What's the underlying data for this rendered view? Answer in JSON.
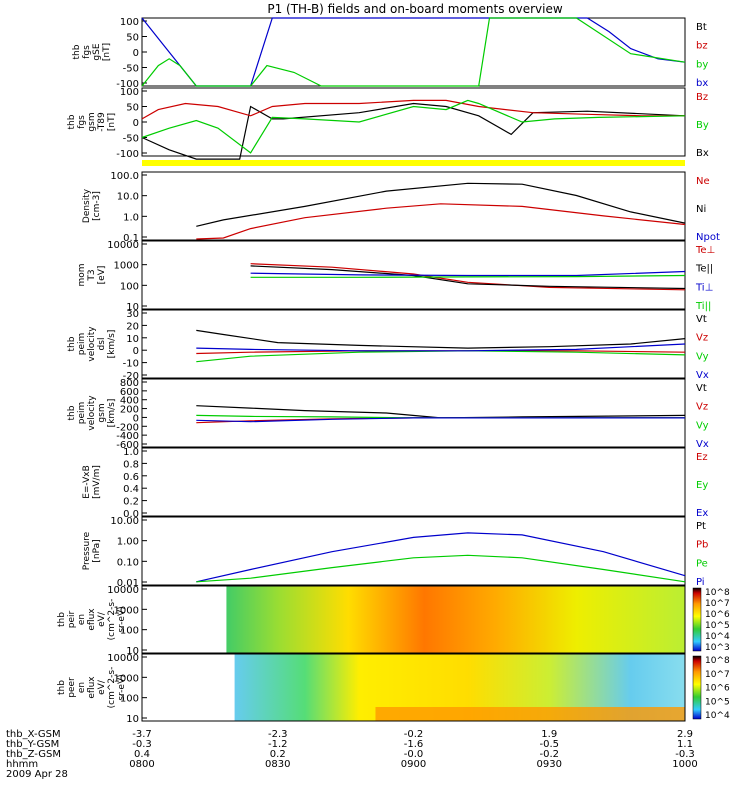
{
  "chart_data": [
    {
      "type": "line",
      "panel": "fgs",
      "ylabel": [
        "thb",
        "fgs",
        "gSE",
        "[nT]"
      ],
      "yticks": [
        "100",
        "50",
        "0",
        "-50",
        "-100"
      ],
      "ylim": [
        -100,
        100
      ],
      "legend": [
        {
          "text": "Bt",
          "color": "#000000"
        },
        {
          "text": "bz",
          "color": "#cc0000"
        },
        {
          "text": "by",
          "color": "#00cc00"
        },
        {
          "text": "bx",
          "color": "#0000cc"
        }
      ],
      "series": [
        {
          "name": "bx",
          "color": "#0000cc",
          "x": [
            0.0,
            0.04,
            0.08,
            0.1,
            0.2,
            0.24,
            0.4,
            0.6,
            0.82,
            0.86,
            0.9,
            0.95,
            1.0
          ],
          "y": [
            100,
            20,
            -60,
            -100,
            -100,
            100,
            100,
            100,
            100,
            60,
            10,
            -20,
            -30
          ]
        },
        {
          "name": "by",
          "color": "#00cc00",
          "x": [
            0.0,
            0.01,
            0.03,
            0.05,
            0.07,
            0.09,
            0.1,
            0.2,
            0.23,
            0.28,
            0.33,
            0.56,
            0.62,
            0.64,
            0.7,
            0.8,
            0.9,
            1.0
          ],
          "y": [
            -100,
            -80,
            -40,
            -20,
            -40,
            -80,
            -100,
            -100,
            -40,
            -60,
            -100,
            -100,
            -100,
            100,
            100,
            100,
            -5,
            -30
          ]
        }
      ]
    },
    {
      "type": "line",
      "panel": "fgs2",
      "ylabel": [
        "thb",
        "fgs",
        "gsm",
        "-T89",
        "[nT]"
      ],
      "yticks": [
        "100",
        "50",
        "0",
        "-50",
        "-100"
      ],
      "ylim": [
        -120,
        100
      ],
      "legend": [
        {
          "text": "Bz",
          "color": "#cc0000"
        },
        {
          "text": "By",
          "color": "#00cc00"
        },
        {
          "text": "Bx",
          "color": "#000000"
        }
      ],
      "series": [
        {
          "name": "Bx",
          "color": "#000000",
          "x": [
            0.0,
            0.05,
            0.1,
            0.18,
            0.2,
            0.24,
            0.26,
            0.4,
            0.5,
            0.56,
            0.62,
            0.68,
            0.72,
            0.82,
            1.0
          ],
          "y": [
            -60,
            -100,
            -130,
            -130,
            40,
            0,
            0,
            20,
            50,
            40,
            10,
            -50,
            20,
            25,
            10
          ]
        },
        {
          "name": "Bz",
          "color": "#cc0000",
          "x": [
            0.0,
            0.03,
            0.08,
            0.14,
            0.2,
            0.24,
            0.3,
            0.4,
            0.5,
            0.56,
            0.62,
            0.72,
            0.82,
            0.92,
            1.0
          ],
          "y": [
            0,
            30,
            50,
            40,
            10,
            40,
            50,
            50,
            60,
            60,
            40,
            20,
            15,
            10,
            10
          ]
        },
        {
          "name": "By",
          "color": "#00cc00",
          "x": [
            0.0,
            0.05,
            0.1,
            0.14,
            0.2,
            0.24,
            0.3,
            0.4,
            0.5,
            0.56,
            0.6,
            0.62,
            0.7,
            0.76,
            0.84,
            1.0
          ],
          "y": [
            -60,
            -30,
            -5,
            -30,
            -110,
            5,
            0,
            -10,
            40,
            30,
            60,
            50,
            -10,
            0,
            5,
            10
          ]
        }
      ]
    },
    {
      "type": "line",
      "panel": "density",
      "ylabel": [
        "Density",
        "[cm-3]"
      ],
      "yticks": [
        "100.0",
        "10.0",
        "1.0",
        "0.1"
      ],
      "ylog": [
        0.07,
        400
      ],
      "legend": [
        {
          "text": "Ne",
          "color": "#cc0000"
        },
        {
          "text": "Ni",
          "color": "#000000"
        },
        {
          "text": "Npot",
          "color": "#0000cc"
        }
      ],
      "series": [
        {
          "name": "Ni",
          "color": "#000000",
          "x": [
            0.1,
            0.15,
            0.3,
            0.45,
            0.6,
            0.7,
            0.8,
            0.9,
            1.0
          ],
          "y": [
            0.4,
            0.9,
            5,
            35,
            95,
            85,
            20,
            2.5,
            0.6
          ]
        },
        {
          "name": "Ne",
          "color": "#cc0000",
          "x": [
            0.1,
            0.15,
            0.2,
            0.3,
            0.45,
            0.55,
            0.7,
            0.85,
            1.0
          ],
          "y": [
            0.08,
            0.09,
            0.3,
            1.2,
            4,
            7,
            5,
            1.5,
            0.5
          ]
        }
      ]
    },
    {
      "type": "line",
      "panel": "temp",
      "ylabel": [
        "mom",
        "T3",
        "[eV]"
      ],
      "yticks": [
        "10000",
        "1000",
        "100",
        "10"
      ],
      "ylog": [
        10,
        10000
      ],
      "legend": [
        {
          "text": "Te⊥",
          "color": "#cc0000"
        },
        {
          "text": "Te||",
          "color": "#000000"
        },
        {
          "text": "Ti⊥",
          "color": "#0000cc"
        },
        {
          "text": "Ti||",
          "color": "#00cc00"
        }
      ],
      "series": [
        {
          "name": "Te⊥",
          "color": "#cc0000",
          "x": [
            0.2,
            0.35,
            0.5,
            0.6,
            0.75,
            1.0
          ],
          "y": [
            1000,
            700,
            350,
            150,
            90,
            70
          ]
        },
        {
          "name": "Te||",
          "color": "#000000",
          "x": [
            0.2,
            0.35,
            0.5,
            0.6,
            0.75,
            1.0
          ],
          "y": [
            800,
            550,
            300,
            130,
            100,
            80
          ]
        },
        {
          "name": "Ti⊥",
          "color": "#0000cc",
          "x": [
            0.2,
            0.4,
            0.6,
            0.8,
            1.0
          ],
          "y": [
            380,
            320,
            300,
            300,
            450
          ]
        },
        {
          "name": "Ti||",
          "color": "#00cc00",
          "x": [
            0.2,
            0.4,
            0.6,
            0.8,
            1.0
          ],
          "y": [
            250,
            250,
            260,
            270,
            300
          ]
        }
      ]
    },
    {
      "type": "line",
      "panel": "vel1",
      "ylabel": [
        "thb",
        "peim",
        "velocity",
        "dsl",
        "[km/s]"
      ],
      "yticks": [
        "30",
        "20",
        "10",
        "0",
        "-10",
        "-20"
      ],
      "ylim": [
        -20,
        30
      ],
      "legend": [
        {
          "text": "Vt",
          "color": "#000000"
        },
        {
          "text": "Vz",
          "color": "#cc0000"
        },
        {
          "text": "Vy",
          "color": "#00cc00"
        },
        {
          "text": "Vx",
          "color": "#0000cc"
        }
      ],
      "series": [
        {
          "name": "Vt",
          "color": "#000000",
          "x": [
            0.1,
            0.15,
            0.25,
            0.4,
            0.6,
            0.75,
            0.9,
            1.0
          ],
          "y": [
            15,
            12,
            6,
            4,
            2,
            3,
            5,
            9
          ]
        },
        {
          "name": "Vz",
          "color": "#cc0000",
          "x": [
            0.1,
            0.2,
            0.4,
            0.6,
            0.8,
            1.0
          ],
          "y": [
            -2,
            -1,
            0,
            0,
            0,
            -1
          ]
        },
        {
          "name": "Vy",
          "color": "#00cc00",
          "x": [
            0.1,
            0.2,
            0.4,
            0.6,
            0.8,
            1.0
          ],
          "y": [
            -8,
            -4,
            -1,
            0,
            -1,
            -3
          ]
        },
        {
          "name": "Vx",
          "color": "#0000cc",
          "x": [
            0.1,
            0.2,
            0.4,
            0.6,
            0.8,
            1.0
          ],
          "y": [
            2,
            1,
            0,
            0,
            1,
            5
          ]
        }
      ]
    },
    {
      "type": "line",
      "panel": "vel2",
      "ylabel": [
        "thb",
        "peim",
        "velocity",
        "gsm",
        "[km/s]"
      ],
      "yticks": [
        "800",
        "600",
        "400",
        "200",
        "0",
        "-200",
        "-400",
        "-600"
      ],
      "ylim": [
        -600,
        800
      ],
      "legend": [
        {
          "text": "Vt",
          "color": "#000000"
        },
        {
          "text": "Vz",
          "color": "#cc0000"
        },
        {
          "text": "Vy",
          "color": "#00cc00"
        },
        {
          "text": "Vx",
          "color": "#0000cc"
        }
      ],
      "series": [
        {
          "name": "Vt",
          "color": "#000000",
          "x": [
            0.1,
            0.2,
            0.3,
            0.45,
            0.55,
            0.7,
            1.0
          ],
          "y": [
            250,
            200,
            150,
            100,
            0,
            20,
            50
          ]
        },
        {
          "name": "Vz",
          "color": "#cc0000",
          "x": [
            0.1,
            0.2,
            0.35,
            0.5,
            0.6,
            1.0
          ],
          "y": [
            -100,
            -60,
            -20,
            0,
            0,
            0
          ]
        },
        {
          "name": "Vy",
          "color": "#00cc00",
          "x": [
            0.1,
            0.2,
            0.35,
            0.5,
            0.6,
            1.0
          ],
          "y": [
            50,
            30,
            20,
            0,
            0,
            0
          ]
        },
        {
          "name": "Vx",
          "color": "#0000cc",
          "x": [
            0.1,
            0.2,
            0.35,
            0.5,
            0.6,
            1.0
          ],
          "y": [
            -50,
            -80,
            -30,
            0,
            0,
            0
          ]
        }
      ]
    },
    {
      "type": "line",
      "panel": "efield",
      "ylabel": [
        "E=-VxB",
        "[mV/m]"
      ],
      "yticks": [
        "1.0",
        "0.8",
        "0.6",
        "0.4",
        "0.2",
        "0.0"
      ],
      "ylim": [
        0,
        1
      ],
      "legend": [
        {
          "text": "Ez",
          "color": "#cc0000"
        },
        {
          "text": "Ey",
          "color": "#00cc00"
        },
        {
          "text": "Ex",
          "color": "#0000cc"
        }
      ],
      "series": []
    },
    {
      "type": "line",
      "panel": "pressure",
      "ylabel": [
        "Pressure",
        "[nPa]"
      ],
      "yticks": [
        "10.00",
        "1.00",
        "0.10",
        "0.01"
      ],
      "ylog": [
        0.007,
        15
      ],
      "legend": [
        {
          "text": "Pt",
          "color": "#000000"
        },
        {
          "text": "Pb",
          "color": "#cc0000"
        },
        {
          "text": "Pe",
          "color": "#00cc00"
        },
        {
          "text": "Pi",
          "color": "#0000cc"
        }
      ],
      "series": [
        {
          "name": "Pi",
          "color": "#0000cc",
          "x": [
            0.1,
            0.2,
            0.35,
            0.5,
            0.6,
            0.7,
            0.85,
            1.0
          ],
          "y": [
            0.01,
            0.04,
            0.3,
            1.5,
            2.5,
            2,
            0.3,
            0.02
          ]
        },
        {
          "name": "Pe",
          "color": "#00cc00",
          "x": [
            0.1,
            0.2,
            0.35,
            0.5,
            0.6,
            0.7,
            0.85,
            1.0
          ],
          "y": [
            0.01,
            0.015,
            0.05,
            0.15,
            0.2,
            0.15,
            0.04,
            0.01
          ]
        }
      ]
    },
    {
      "type": "heatmap",
      "panel": "peir",
      "ylabel": [
        "thb",
        "peir",
        "en",
        "eflux",
        "eV/",
        "(cm^2-s-",
        "sr-eV)"
      ],
      "yticks": [
        "10000",
        "1000",
        "100",
        "10"
      ],
      "colorbar_ticks": [
        "10^8",
        "10^7",
        "10^6",
        "10^5",
        "10^4",
        "10^3"
      ]
    },
    {
      "type": "heatmap",
      "panel": "peer",
      "ylabel": [
        "thb",
        "peer",
        "en",
        "eflux",
        "eV/",
        "(cm^2-s-",
        "sr-eV)"
      ],
      "yticks": [
        "10000",
        "1000",
        "100",
        "10"
      ],
      "colorbar_ticks": [
        "10^8",
        "10^7",
        "10^6",
        "10^5",
        "10^4"
      ]
    }
  ],
  "page": {
    "title": "P1 (TH-B) fields and on-board moments overview",
    "date": "2009 Apr 28",
    "xrows": [
      {
        "label": "thb_X-GSM",
        "values": [
          "-3.7",
          "-2.3",
          "-0.2",
          "1.9",
          "2.9"
        ]
      },
      {
        "label": "thb_Y-GSM",
        "values": [
          "-0.3",
          "-1.2",
          "-1.6",
          "-0.5",
          "1.1"
        ]
      },
      {
        "label": "thb_Z-GSM",
        "values": [
          "0.4",
          "0.2",
          "-0.0",
          "-0.2",
          "-0.3"
        ]
      },
      {
        "label": "hhmm",
        "values": [
          "0800",
          "0830",
          "0900",
          "0930",
          "1000"
        ]
      }
    ]
  }
}
